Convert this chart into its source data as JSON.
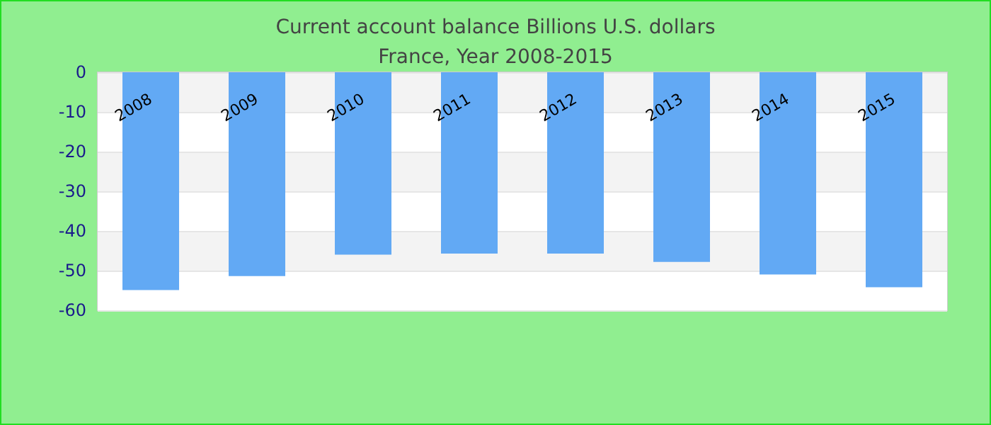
{
  "chart_data": {
    "type": "bar",
    "title": "Current account balance Billions U.S. dollars",
    "subtitle": "France, Year 2008-2015",
    "categories": [
      "2008",
      "2009",
      "2010",
      "2011",
      "2012",
      "2013",
      "2014",
      "2015"
    ],
    "values": [
      -54.9,
      -51.4,
      -46.0,
      -45.7,
      -45.7,
      -47.8,
      -51.0,
      -54.2
    ],
    "color": "#62a9f4",
    "ylim": [
      -60,
      0
    ],
    "yticks": [
      -60,
      -50,
      -40,
      -30,
      -20,
      -10,
      0
    ],
    "grid": "y"
  }
}
